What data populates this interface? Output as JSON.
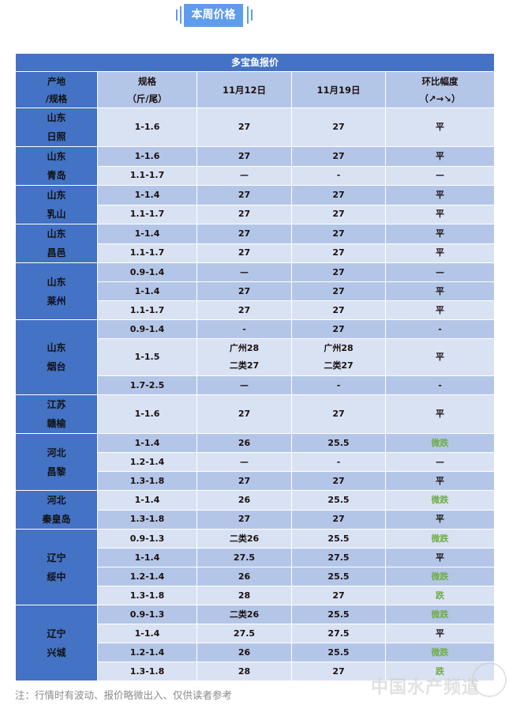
{
  "section_tag": "本周价格",
  "table": {
    "title": "多宝鱼报价",
    "headers": {
      "origin": [
        "产地",
        "/规格"
      ],
      "spec": [
        "规格",
        "（斤/尾）"
      ],
      "date1": "11月12日",
      "date2": "11月19日",
      "change": [
        "环比幅度",
        "（↗→↘）"
      ]
    },
    "groups": [
      {
        "origin": [
          "山东",
          "日照"
        ],
        "rows": [
          {
            "spec": "1-1.6",
            "p1": [
              "27"
            ],
            "p2": [
              "27"
            ],
            "change": "平"
          }
        ]
      },
      {
        "origin": [
          "山东",
          "青岛"
        ],
        "rows": [
          {
            "spec": "1-1.6",
            "p1": [
              "27"
            ],
            "p2": [
              "27"
            ],
            "change": "平"
          },
          {
            "spec": "1.1-1.7",
            "p1": [
              "—"
            ],
            "p2": [
              "-"
            ],
            "change": "—"
          }
        ]
      },
      {
        "origin": [
          "山东",
          "乳山"
        ],
        "rows": [
          {
            "spec": "1-1.4",
            "p1": [
              "27"
            ],
            "p2": [
              "27"
            ],
            "change": "平"
          },
          {
            "spec": "1.1-1.7",
            "p1": [
              "27"
            ],
            "p2": [
              "27"
            ],
            "change": "平"
          }
        ]
      },
      {
        "origin": [
          "山东",
          "昌邑"
        ],
        "rows": [
          {
            "spec": "1-1.4",
            "p1": [
              "27"
            ],
            "p2": [
              "27"
            ],
            "change": "平"
          },
          {
            "spec": "1.1-1.7",
            "p1": [
              "27"
            ],
            "p2": [
              "27"
            ],
            "change": "平"
          }
        ]
      },
      {
        "origin": [
          "山东",
          "莱州"
        ],
        "rows": [
          {
            "spec": "0.9-1.4",
            "p1": [
              "—"
            ],
            "p2": [
              "27"
            ],
            "change": "—"
          },
          {
            "spec": "1-1.4",
            "p1": [
              "27"
            ],
            "p2": [
              "27"
            ],
            "change": "平"
          },
          {
            "spec": "1.1-1.7",
            "p1": [
              "27"
            ],
            "p2": [
              "27"
            ],
            "change": "平"
          }
        ]
      },
      {
        "origin": [
          "山东",
          "烟台"
        ],
        "rows": [
          {
            "spec": "0.9-1.4",
            "p1": [
              "-"
            ],
            "p2": [
              "27"
            ],
            "change": "-"
          },
          {
            "spec": "1-1.5",
            "p1": [
              "广州28",
              "二类27"
            ],
            "p2": [
              "广州28",
              "二类27"
            ],
            "change": "平"
          },
          {
            "spec": "1.7-2.5",
            "p1": [
              "—"
            ],
            "p2": [
              "-"
            ],
            "change": "-"
          }
        ]
      },
      {
        "origin": [
          "江苏",
          "赣榆"
        ],
        "rows": [
          {
            "spec": "1-1.6",
            "p1": [
              "27"
            ],
            "p2": [
              "27"
            ],
            "change": "平"
          }
        ]
      },
      {
        "origin": [
          "河北",
          "昌黎"
        ],
        "rows": [
          {
            "spec": "1-1.4",
            "p1": [
              "26"
            ],
            "p2": [
              "25.5"
            ],
            "change": "微跌"
          },
          {
            "spec": "1.2-1.4",
            "p1": [
              "—"
            ],
            "p2": [
              "-"
            ],
            "change": "—"
          },
          {
            "spec": "1.3-1.8",
            "p1": [
              "27"
            ],
            "p2": [
              "27"
            ],
            "change": "平"
          }
        ]
      },
      {
        "origin": [
          "河北",
          "秦皇岛"
        ],
        "rows": [
          {
            "spec": "1-1.4",
            "p1": [
              "26"
            ],
            "p2": [
              "25.5"
            ],
            "change": "微跌"
          },
          {
            "spec": "1.3-1.8",
            "p1": [
              "27"
            ],
            "p2": [
              "27"
            ],
            "change": "平"
          }
        ]
      },
      {
        "origin": [
          "辽宁",
          "绥中"
        ],
        "rows": [
          {
            "spec": "0.9-1.3",
            "p1": [
              "二类26"
            ],
            "p2": [
              "25.5"
            ],
            "change": "微跌"
          },
          {
            "spec": "1-1.4",
            "p1": [
              "27.5"
            ],
            "p2": [
              "27.5"
            ],
            "change": "平"
          },
          {
            "spec": "1.2-1.4",
            "p1": [
              "26"
            ],
            "p2": [
              "25.5"
            ],
            "change": "微跌"
          },
          {
            "spec": "1.3-1.8",
            "p1": [
              "28"
            ],
            "p2": [
              "27"
            ],
            "change": "跌"
          }
        ]
      },
      {
        "origin": [
          "辽宁",
          "兴城"
        ],
        "rows": [
          {
            "spec": "0.9-1.3",
            "p1": [
              "二类26"
            ],
            "p2": [
              "25.5"
            ],
            "change": "微跌"
          },
          {
            "spec": "1-1.4",
            "p1": [
              "27.5"
            ],
            "p2": [
              "27.5"
            ],
            "change": "平"
          },
          {
            "spec": "1.2-1.4",
            "p1": [
              "26"
            ],
            "p2": [
              "25.5"
            ],
            "change": "微跌"
          },
          {
            "spec": "1.3-1.8",
            "p1": [
              "28"
            ],
            "p2": [
              "27"
            ],
            "change": "跌"
          }
        ]
      }
    ]
  },
  "note": "注：行情时有波动、报价略微出入、仅供读者参考",
  "watermark": "中国水产频道",
  "colors": {
    "accent": "#4472c4",
    "tag": "#5e9cec",
    "row_light": "#d9e2f3",
    "row_dark": "#b4c6e7",
    "decline": "#70ad47"
  }
}
